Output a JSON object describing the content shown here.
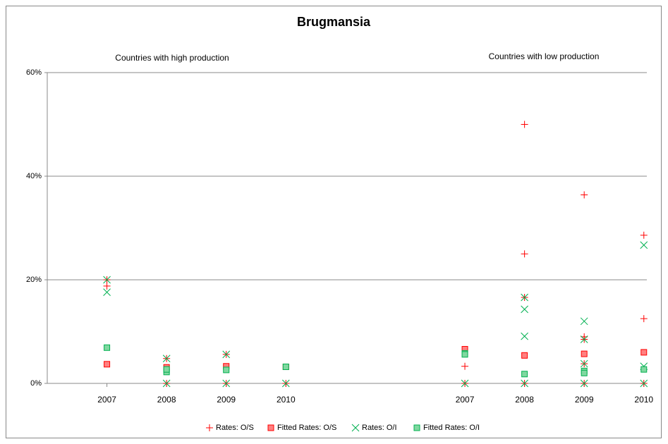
{
  "chart_data": {
    "type": "scatter",
    "title": "Brugmansia",
    "annotations": [
      "Countries with high production",
      "Countries with low production"
    ],
    "xlim": [
      0,
      10.05
    ],
    "xticks": [
      {
        "value": 1,
        "label": "2007"
      },
      {
        "value": 2,
        "label": "2008"
      },
      {
        "value": 3,
        "label": "2009"
      },
      {
        "value": 4,
        "label": "2010"
      },
      {
        "value": 7,
        "label": "2007"
      },
      {
        "value": 8,
        "label": "2008"
      },
      {
        "value": 9,
        "label": "2009"
      },
      {
        "value": 10,
        "label": "2010"
      }
    ],
    "ylim": [
      0,
      60
    ],
    "yticks": [
      {
        "value": 0,
        "label": "0%"
      },
      {
        "value": 20,
        "label": "20%"
      },
      {
        "value": 40,
        "label": "40%"
      },
      {
        "value": 60,
        "label": "60%"
      }
    ],
    "grid": true,
    "legend": "bottom",
    "series": [
      {
        "name": "Rates: O/S",
        "color": "#ff0000",
        "marker": "plus",
        "x": [
          1,
          1,
          2,
          2,
          3,
          3,
          4,
          7,
          7,
          8,
          8,
          8,
          8,
          9,
          9,
          9,
          9,
          9,
          10,
          10,
          10
        ],
        "values": [
          20,
          18.8,
          4.8,
          0,
          5.6,
          0,
          0,
          3.3,
          0,
          50,
          25,
          16.6,
          0,
          36.4,
          9,
          8.5,
          3.8,
          0,
          28.6,
          12.5,
          0
        ]
      },
      {
        "name": "Fitted Rates: O/S",
        "color": "#ff0000",
        "marker": "square",
        "x": [
          1,
          2,
          3,
          4,
          7,
          8,
          9,
          10
        ],
        "values": [
          3.7,
          3.1,
          3.3,
          3.2,
          6.6,
          5.4,
          5.7,
          6
        ]
      },
      {
        "name": "Rates: O/I",
        "color": "#00b050",
        "marker": "x",
        "x": [
          1,
          1,
          2,
          2,
          3,
          3,
          4,
          7,
          8,
          8,
          8,
          8,
          9,
          9,
          9,
          9,
          10,
          10,
          10
        ],
        "values": [
          20,
          17.6,
          4.8,
          0,
          5.6,
          0,
          0,
          0,
          16.6,
          14.3,
          9.1,
          0,
          12,
          8.5,
          3.8,
          0,
          26.7,
          3.3,
          0
        ]
      },
      {
        "name": "Fitted Rates: O/I",
        "color": "#00b050",
        "marker": "square",
        "x": [
          1,
          2,
          2,
          3,
          4,
          7,
          7,
          8,
          9,
          9,
          10
        ],
        "values": [
          6.9,
          2.2,
          2.7,
          2.6,
          3.2,
          5.8,
          5.6,
          1.8,
          2.4,
          2.0,
          2.7
        ]
      }
    ]
  }
}
